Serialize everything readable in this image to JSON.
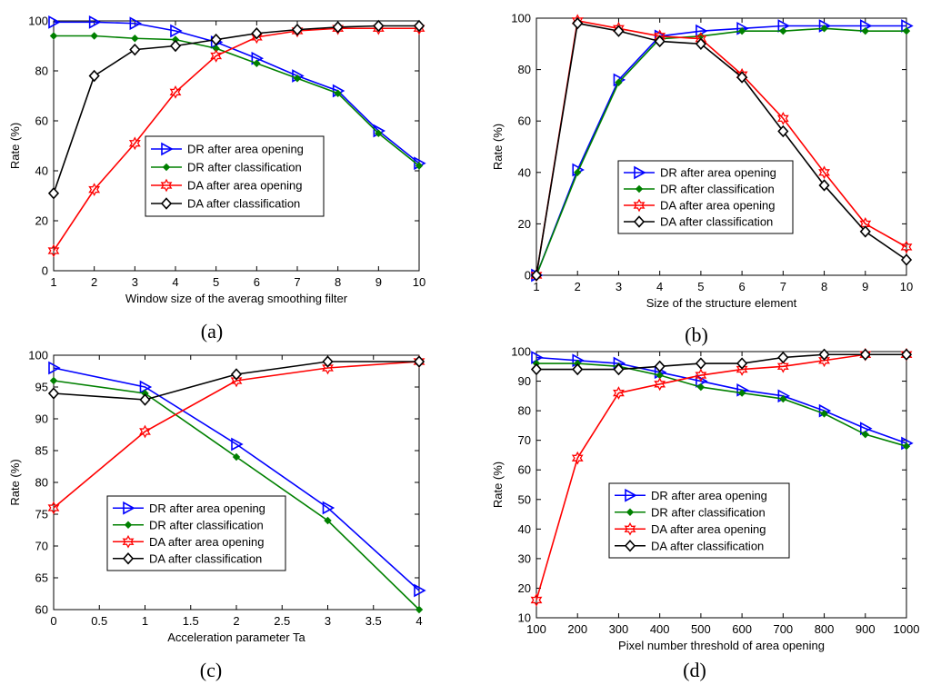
{
  "figure": {
    "panels": [
      {
        "id": "a",
        "caption": "(a)"
      },
      {
        "id": "b",
        "caption": "(b)"
      },
      {
        "id": "c",
        "caption": "(c)"
      },
      {
        "id": "d",
        "caption": "(d)"
      }
    ]
  },
  "colors": {
    "DR after area opening": "#0000ff",
    "DR after classification": "#008000",
    "DA after area opening": "#ff0000",
    "DA after classification": "#000000"
  },
  "chart_data": [
    {
      "panel": "a",
      "caption": "(a)",
      "type": "line",
      "xlabel": "Window size of the averag smoothing filter",
      "ylabel": "Rate (%)",
      "xlim": [
        1,
        10
      ],
      "ylim": [
        0,
        100
      ],
      "xticks": [
        1,
        2,
        3,
        4,
        5,
        6,
        7,
        8,
        9,
        10
      ],
      "yticks": [
        0,
        20,
        40,
        60,
        80,
        100
      ],
      "grid": false,
      "legend_position": "center",
      "x": [
        1,
        2,
        3,
        4,
        5,
        6,
        7,
        8,
        9,
        10
      ],
      "series": [
        {
          "name": "DR after area opening",
          "marker": "triangle-right",
          "values": [
            99.5,
            99.5,
            99,
            96,
            91.5,
            85,
            78,
            72,
            56,
            43
          ]
        },
        {
          "name": "DR after classification",
          "marker": "diamond-filled",
          "values": [
            94,
            94,
            93,
            92.5,
            89,
            83,
            77,
            71,
            55,
            42
          ]
        },
        {
          "name": "DA after area opening",
          "marker": "hexagram",
          "values": [
            8,
            32.5,
            51,
            71.5,
            86,
            93.5,
            96,
            97,
            97,
            97
          ]
        },
        {
          "name": "DA after classification",
          "marker": "diamond",
          "values": [
            31,
            78,
            88.5,
            90,
            92.5,
            95,
            96.5,
            97.5,
            98,
            98
          ]
        }
      ]
    },
    {
      "panel": "b",
      "caption": "(b)",
      "type": "line",
      "xlabel": "Size of the structure element",
      "ylabel": "Rate (%)",
      "xlim": [
        1,
        10
      ],
      "ylim": [
        0,
        100
      ],
      "xticks": [
        1,
        2,
        3,
        4,
        5,
        6,
        7,
        8,
        9,
        10
      ],
      "yticks": [
        0,
        20,
        40,
        60,
        80,
        100
      ],
      "grid": false,
      "legend_position": "bottom-center",
      "x": [
        1,
        2,
        3,
        4,
        5,
        6,
        7,
        8,
        9,
        10
      ],
      "series": [
        {
          "name": "DR after area opening",
          "marker": "triangle-right",
          "values": [
            0,
            41,
            76,
            93,
            95,
            96,
            97,
            97,
            97,
            97
          ]
        },
        {
          "name": "DR after classification",
          "marker": "diamond-filled",
          "values": [
            0,
            40,
            75,
            92,
            93,
            95,
            95,
            96,
            95,
            95
          ]
        },
        {
          "name": "DA after area opening",
          "marker": "hexagram",
          "values": [
            0,
            99,
            96,
            93,
            92,
            78,
            61,
            40,
            20,
            11
          ]
        },
        {
          "name": "DA after classification",
          "marker": "diamond",
          "values": [
            0,
            98,
            95,
            91,
            90,
            77,
            56,
            35,
            17,
            6
          ]
        }
      ]
    },
    {
      "panel": "c",
      "caption": "(c)",
      "type": "line",
      "xlabel": "Acceleration parameter Ta",
      "ylabel": "Rate (%)",
      "xlim": [
        0,
        4
      ],
      "ylim": [
        60,
        100
      ],
      "xticks": [
        0,
        0.5,
        1,
        1.5,
        2,
        2.5,
        3,
        3.5,
        4
      ],
      "yticks": [
        60,
        65,
        70,
        75,
        80,
        85,
        90,
        95,
        100
      ],
      "grid": false,
      "legend_position": "bottom-center",
      "x": [
        0,
        1,
        2,
        3,
        4
      ],
      "series": [
        {
          "name": "DR after area opening",
          "marker": "triangle-right",
          "values": [
            98,
            95,
            86,
            76,
            63
          ]
        },
        {
          "name": "DR after classification",
          "marker": "diamond-filled",
          "values": [
            96,
            94,
            84,
            74,
            60
          ]
        },
        {
          "name": "DA after area opening",
          "marker": "hexagram",
          "values": [
            76,
            88,
            96,
            98,
            99
          ]
        },
        {
          "name": "DA after classification",
          "marker": "diamond",
          "values": [
            94,
            93,
            97,
            99,
            99
          ]
        }
      ]
    },
    {
      "panel": "d",
      "caption": "(d)",
      "type": "line",
      "xlabel": "Pixel number threshold of area opening",
      "ylabel": "Rate (%)",
      "xlim": [
        100,
        1000
      ],
      "ylim": [
        10,
        100
      ],
      "xticks": [
        100,
        200,
        300,
        400,
        500,
        600,
        700,
        800,
        900,
        1000
      ],
      "yticks": [
        10,
        20,
        30,
        40,
        50,
        60,
        70,
        80,
        90,
        100
      ],
      "grid": false,
      "legend_position": "bottom-center",
      "x": [
        100,
        200,
        300,
        400,
        500,
        600,
        700,
        800,
        900,
        1000
      ],
      "series": [
        {
          "name": "DR after area opening",
          "marker": "triangle-right",
          "values": [
            98,
            97,
            96,
            93,
            90,
            87,
            85,
            80,
            74,
            69
          ]
        },
        {
          "name": "DR after classification",
          "marker": "diamond-filled",
          "values": [
            96,
            96,
            95,
            92,
            88,
            86,
            84,
            79,
            72,
            68
          ]
        },
        {
          "name": "DA after area opening",
          "marker": "hexagram",
          "values": [
            16,
            64,
            86,
            89,
            92,
            94,
            95,
            97,
            99,
            99
          ]
        },
        {
          "name": "DA after classification",
          "marker": "diamond",
          "values": [
            94,
            94,
            94,
            95,
            96,
            96,
            98,
            99,
            99,
            99
          ]
        }
      ]
    }
  ]
}
